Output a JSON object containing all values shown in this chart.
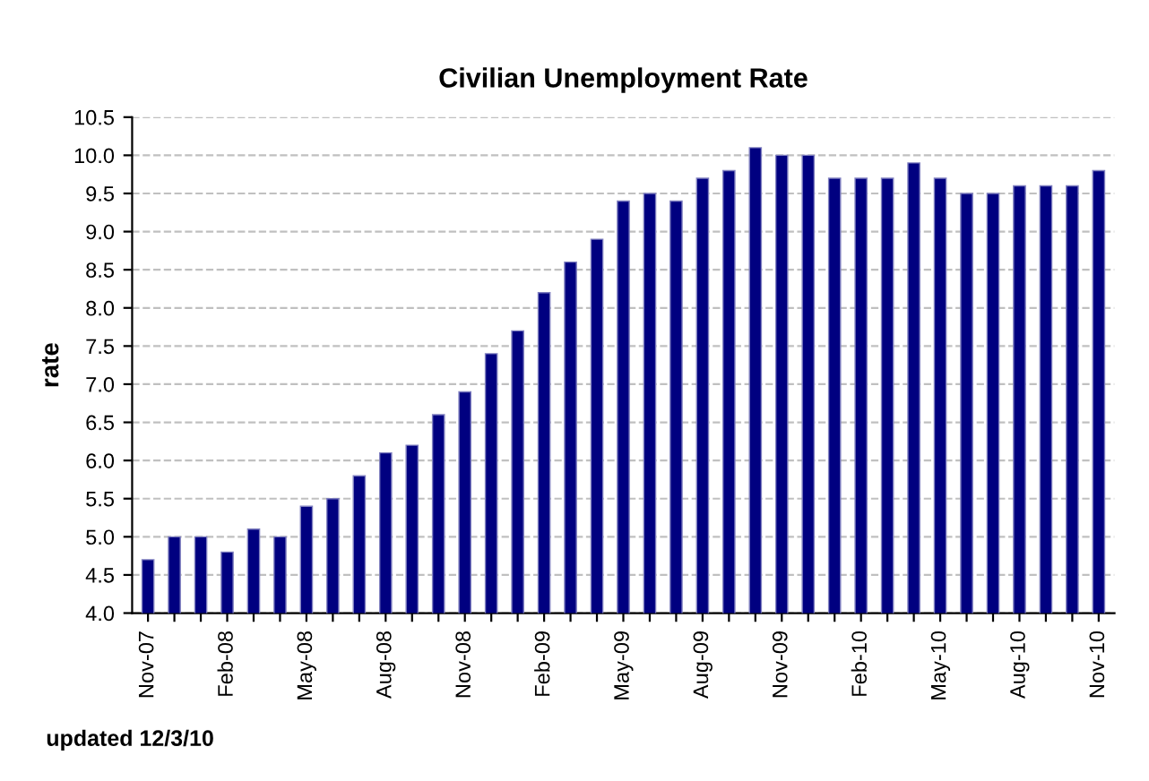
{
  "chart_data": {
    "type": "bar",
    "title": "Civilian Unemployment Rate",
    "ylabel": "rate",
    "categories": [
      "Nov-07",
      null,
      null,
      "Feb-08",
      null,
      null,
      "May-08",
      null,
      null,
      "Aug-08",
      null,
      null,
      "Nov-08",
      null,
      null,
      "Feb-09",
      null,
      null,
      "May-09",
      null,
      null,
      "Aug-09",
      null,
      null,
      "Nov-09",
      null,
      null,
      "Feb-10",
      null,
      null,
      "May-10",
      null,
      null,
      "Aug-10",
      null,
      null,
      "Nov-10"
    ],
    "values": [
      4.7,
      5.0,
      5.0,
      4.8,
      5.1,
      5.0,
      5.4,
      5.5,
      5.8,
      6.1,
      6.2,
      6.6,
      6.9,
      7.4,
      7.7,
      8.2,
      8.6,
      8.9,
      9.4,
      9.5,
      9.4,
      9.7,
      9.8,
      10.1,
      10.0,
      10.0,
      9.7,
      9.7,
      9.7,
      9.9,
      9.7,
      9.5,
      9.5,
      9.6,
      9.6,
      9.6,
      9.8
    ],
    "color": "#000080",
    "ylim": [
      4.0,
      10.5
    ],
    "yticks": [
      {
        "value": 4.0,
        "label": "4.0"
      },
      {
        "value": 4.5,
        "label": "4.5"
      },
      {
        "value": 5.0,
        "label": "5.0"
      },
      {
        "value": 5.5,
        "label": "5.5"
      },
      {
        "value": 6.0,
        "label": "6.0"
      },
      {
        "value": 6.5,
        "label": "6.5"
      },
      {
        "value": 7.0,
        "label": "7.0"
      },
      {
        "value": 7.5,
        "label": "7.5"
      },
      {
        "value": 8.0,
        "label": "8.0"
      },
      {
        "value": 8.5,
        "label": "8.5"
      },
      {
        "value": 9.0,
        "label": "9.0"
      },
      {
        "value": 9.5,
        "label": "9.5"
      },
      {
        "value": 10.0,
        "label": "10.0"
      },
      {
        "value": 10.5,
        "label": "10.5"
      }
    ],
    "grid": "y",
    "annotations": [
      "updated 12/3/10"
    ]
  }
}
